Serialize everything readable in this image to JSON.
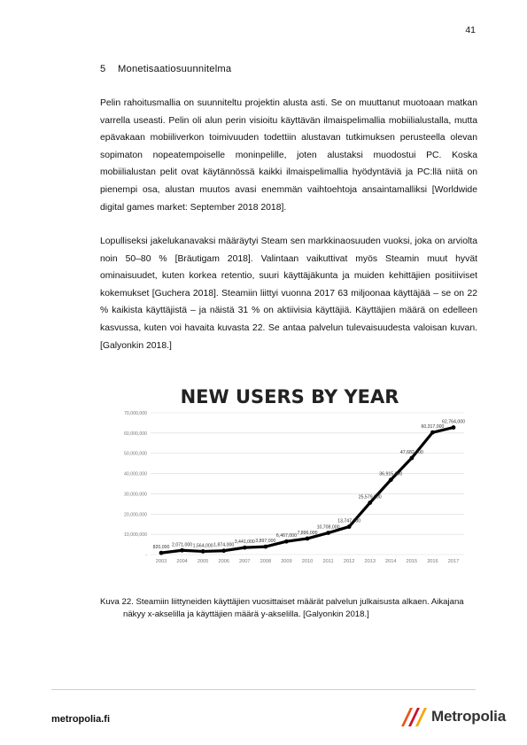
{
  "page_number": "41",
  "section": {
    "number": "5",
    "title": "Monetisaatiosuunnitelma"
  },
  "paragraphs": [
    "Pelin rahoitusmallia on suunniteltu projektin alusta asti. Se on muuttanut muotoaan matkan varrella useasti. Pelin oli alun perin visioitu käyttävän ilmaispelimallia mobiilialustalla, mutta epävakaan mobiiliverkon toimivuuden todettiin alustavan tutkimuksen perusteella olevan sopimaton nopeatempoiselle moninpelille, joten alustaksi muodostui PC. Koska mobiilialustan pelit ovat käytännössä kaikki ilmaispelimallia hyödyntäviä ja PC:llä niitä on pienempi osa, alustan muutos avasi enemmän vaihtoehtoja ansaintamalliksi [Worldwide digital games market: September 2018 2018].",
    "Lopulliseksi jakelukanavaksi määräytyi Steam sen markkinaosuuden vuoksi, joka on arviolta noin 50–80 % [Bräutigam 2018]. Valintaan vaikuttivat myös Steamin muut hyvät ominaisuudet, kuten korkea retentio, suuri käyttäjäkunta ja muiden kehittäjien positiiviset kokemukset [Guchera 2018]. Steamiin liittyi vuonna 2017 63 miljoonaa käyttäjää – se on 22 % kaikista käyttäjistä – ja näistä 31 % on aktiivisia käyttäjiä. Käyttäjien määrä on edelleen kasvussa, kuten voi havaita kuvasta 22. Se antaa palvelun tulevaisuudesta valoisan kuvan. [Galyonkin 2018.]"
  ],
  "chart_data": {
    "type": "line",
    "title": "NEW USERS BY YEAR",
    "xlabel": "",
    "ylabel": "",
    "x": [
      "2003",
      "2004",
      "2005",
      "2006",
      "2007",
      "2008",
      "2009",
      "2010",
      "2011",
      "2012",
      "2013",
      "2014",
      "2015",
      "2016",
      "2017"
    ],
    "y": [
      820000,
      2071000,
      1564000,
      1874000,
      3441000,
      3897000,
      6467000,
      7896000,
      10708000,
      13747000,
      25579000,
      36915000,
      47682000,
      60317000,
      62764000
    ],
    "point_labels": [
      "820,000",
      "2,071,000",
      "1,564,000",
      "1,874,000",
      "3,441,000",
      "3,897,000",
      "6,467,000",
      "7,896,000",
      "10,708,000",
      "13,747,000",
      "25,579,000",
      "36,915,000",
      "47,682,000",
      "60,317,000",
      "62,764,000"
    ],
    "yticks": [
      "-",
      "10,000,000",
      "20,000,000",
      "30,000,000",
      "40,000,000",
      "50,000,000",
      "60,000,000",
      "70,000,000"
    ],
    "ylim": [
      0,
      70000000
    ],
    "grid": true,
    "line_color": "#000000"
  },
  "caption": {
    "line1": "Kuva 22. Steamiin liittyneiden käyttäjien vuosittaiset määrät palvelun julkaisusta alkaen. Aikajana",
    "line2": "näkyy x-akselilla ja käyttäjien määrä y-akselilla. [Galyonkin 2018.]"
  },
  "footer": {
    "site": "metropolia.fi",
    "logo_text": "Metropolia",
    "logo_colors": [
      "#e8581c",
      "#c8102e",
      "#f7a600"
    ]
  }
}
